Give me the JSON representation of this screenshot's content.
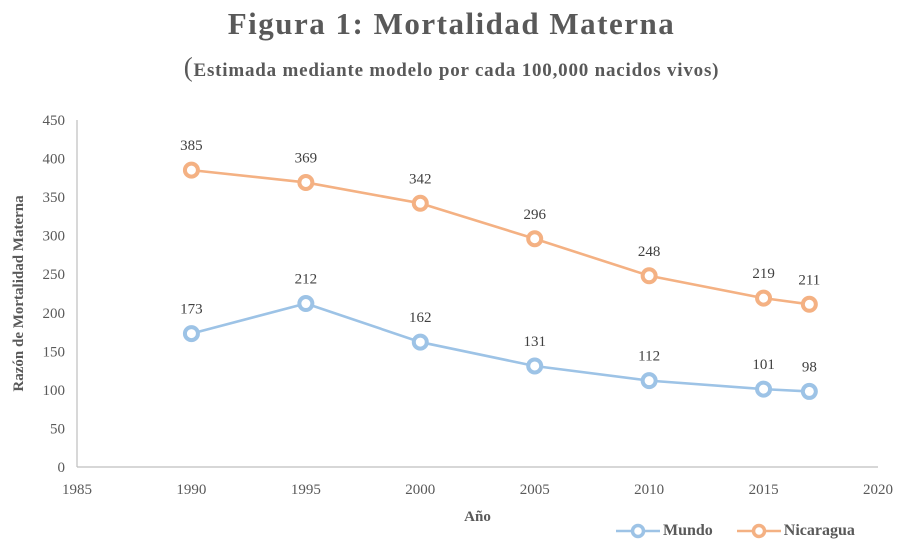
{
  "chart_data": {
    "type": "line",
    "title": "Figura 1: Mortalidad Materna",
    "subtitle_paren": "(",
    "subtitle": "Estimada mediante modelo por cada 100,000 nacidos vivos)",
    "xlabel": "Año",
    "ylabel": "Razón de Mortalidad Materna",
    "xlim": [
      1985,
      2020
    ],
    "ylim": [
      0,
      450
    ],
    "xticks": [
      1985,
      1990,
      1995,
      2000,
      2005,
      2010,
      2015,
      2020
    ],
    "yticks": [
      0,
      50,
      100,
      150,
      200,
      250,
      300,
      350,
      400,
      450
    ],
    "grid": false,
    "legend_position": "bottom-right",
    "x": [
      1990,
      1995,
      2000,
      2005,
      2010,
      2015,
      2017
    ],
    "series": [
      {
        "name": "Mundo",
        "color": "#9DC3E6",
        "values": [
          173,
          212,
          162,
          131,
          112,
          101,
          98
        ]
      },
      {
        "name": "Nicaragua",
        "color": "#F4B183",
        "values": [
          385,
          369,
          342,
          296,
          248,
          219,
          211
        ]
      }
    ]
  }
}
